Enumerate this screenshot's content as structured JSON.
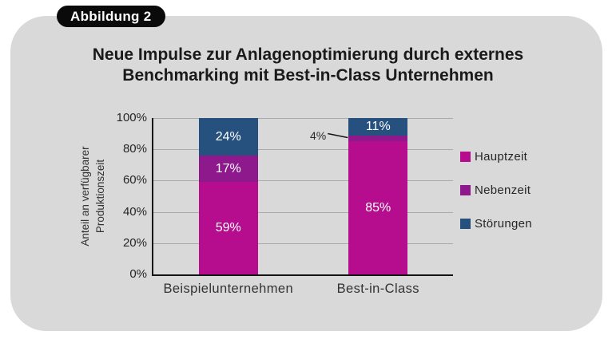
{
  "badge": {
    "label": "Abbildung 2"
  },
  "title": {
    "line1": "Neue Impulse zur Anlagenoptimierung durch externes",
    "line2": "Benchmarking mit Best-in-Class Unternehmen"
  },
  "chart_data": {
    "type": "bar",
    "stacked": true,
    "categories": [
      "Beispielunternehmen",
      "Best-in-Class"
    ],
    "series": [
      {
        "name": "Hauptzeit",
        "color": "#B50D8E",
        "values": [
          59,
          85
        ]
      },
      {
        "name": "Nebenzeit",
        "color": "#8D198D",
        "values": [
          17,
          4
        ]
      },
      {
        "name": "Störungen",
        "color": "#26517F",
        "values": [
          24,
          11
        ]
      }
    ],
    "ylabel": "Anteil an verfügbarer\nProduktionszeit",
    "ylim": [
      0,
      100
    ],
    "y_ticks": [
      0,
      20,
      40,
      60,
      80,
      100
    ],
    "y_tick_suffix": "%",
    "data_label_suffix": "%",
    "grid": true,
    "legend_position": "right",
    "annotations": [
      {
        "text": "4%",
        "series": "Nebenzeit",
        "category": "Best-in-Class",
        "style": "callout-left"
      }
    ]
  },
  "colors": {
    "card_bg": "#D9D9D9",
    "badge_bg": "#0A0A0A",
    "badge_text": "#FFFFFF",
    "gridline": "#ABABAB",
    "axis": "#141414",
    "data_label": "#FFFFFF"
  }
}
